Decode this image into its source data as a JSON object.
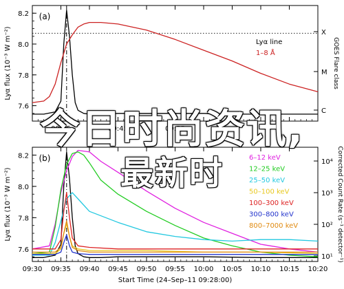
{
  "chart_data": [
    {
      "panel": "(a)",
      "type": "line",
      "ylabel": "Lyα flux (10⁻³ W m⁻²)",
      "ylim": [
        7.5,
        8.25
      ],
      "yticks": [
        "7.6",
        "7.8",
        "8.0",
        "8.2"
      ],
      "xlim": [
        0,
        50
      ],
      "xticks_minutes": [
        0,
        5,
        10,
        15,
        20,
        25,
        30,
        35,
        40,
        45,
        50
      ],
      "xticklabels": [
        "",
        "09:35",
        "",
        "09:45",
        "",
        "09:55",
        "",
        "",
        "",
        "",
        ""
      ],
      "right_axis_label": "GOES Flare class",
      "right_axis_ticks": [
        "X",
        "M",
        "C"
      ],
      "dashed_hline": 8.07,
      "flare_peak_minute": 6,
      "legend": [
        {
          "name": "Lyα line",
          "color": "#000000"
        },
        {
          "name": "1–8 Å",
          "color": "#cc2222"
        }
      ],
      "series": [
        {
          "name": "Lyα line",
          "color": "#000000",
          "x": [
            0,
            2,
            4,
            5,
            5.5,
            6,
            6.5,
            7,
            7.5,
            8,
            9,
            10,
            12,
            15,
            20,
            25,
            30,
            35,
            40,
            45,
            50
          ],
          "y": [
            7.545,
            7.545,
            7.56,
            7.63,
            8.0,
            8.22,
            8.05,
            7.8,
            7.62,
            7.57,
            7.55,
            7.545,
            7.545,
            7.55,
            7.55,
            7.55,
            7.55,
            7.545,
            7.545,
            7.545,
            7.545
          ]
        },
        {
          "name": "1–8 Å",
          "color": "#cc2222",
          "x": [
            0,
            2,
            3,
            4,
            5,
            6,
            7,
            8,
            9,
            10,
            12,
            15,
            20,
            25,
            30,
            35,
            40,
            45,
            50
          ],
          "y": [
            7.62,
            7.63,
            7.66,
            7.74,
            7.88,
            8.0,
            8.06,
            8.11,
            8.13,
            8.14,
            8.14,
            8.13,
            8.09,
            8.03,
            7.96,
            7.89,
            7.81,
            7.74,
            7.69
          ]
        }
      ]
    },
    {
      "panel": "(b)",
      "type": "line",
      "ylabel": "Lyα flux (10⁻³ W m⁻²)",
      "ylim": [
        7.52,
        8.25
      ],
      "yticks": [
        "7.6",
        "7.8",
        "8.0",
        "8.2"
      ],
      "xlim": [
        0,
        50
      ],
      "xticks_minutes": [
        0,
        5,
        10,
        15,
        20,
        25,
        30,
        35,
        40,
        45,
        50
      ],
      "xticklabels": [
        "09:30",
        "09:35",
        "09:40",
        "09:45",
        "09:50",
        "09:55",
        "10:00",
        "10:05",
        "10:10",
        "10:15",
        "10:20"
      ],
      "xlabel": "Start Time (24–Sep–11 09:28:00)",
      "right_axis_label": "Corrected Count Rate (s⁻¹ detector⁻¹)",
      "right_axis_ticks": [
        "10⁴",
        "10³",
        "10²",
        "10¹"
      ],
      "flare_peak_minute": 6,
      "legend": [
        {
          "name": "6–12 keV",
          "color": "#e020e0"
        },
        {
          "name": "12–25 keV",
          "color": "#22cc22"
        },
        {
          "name": "25–50 keV",
          "color": "#22c8e0"
        },
        {
          "name": "50–100 keV",
          "color": "#e8c820"
        },
        {
          "name": "100–300 keV",
          "color": "#dd2222"
        },
        {
          "name": "300–800 keV",
          "color": "#2233cc"
        },
        {
          "name": "800–7000 keV",
          "color": "#e08a10"
        }
      ],
      "series": [
        {
          "name": "Lyα line",
          "color": "#000000",
          "x": [
            0,
            2,
            4,
            5,
            5.5,
            6,
            6.5,
            7,
            7.5,
            8,
            9,
            10,
            12,
            15,
            20,
            30,
            40,
            50
          ],
          "y": [
            7.545,
            7.545,
            7.56,
            7.63,
            8.0,
            8.22,
            8.05,
            7.8,
            7.62,
            7.57,
            7.55,
            7.545,
            7.545,
            7.55,
            7.55,
            7.55,
            7.545,
            7.545
          ]
        },
        {
          "name": "6–12 keV",
          "color": "#e020e0",
          "x": [
            0,
            3,
            4,
            5,
            6,
            7,
            8,
            10,
            12,
            15,
            20,
            25,
            30,
            35,
            40,
            45,
            50
          ],
          "y": [
            7.6,
            7.62,
            7.76,
            7.96,
            8.1,
            8.19,
            8.23,
            8.22,
            8.16,
            8.09,
            7.97,
            7.86,
            7.77,
            7.7,
            7.63,
            7.6,
            7.58
          ]
        },
        {
          "name": "12–25 keV",
          "color": "#22cc22",
          "x": [
            0,
            3,
            4,
            5,
            6,
            7,
            8,
            9,
            10,
            12,
            15,
            20,
            25,
            30,
            35,
            40,
            45,
            50
          ],
          "y": [
            7.57,
            7.58,
            7.74,
            7.98,
            8.14,
            8.21,
            8.22,
            8.2,
            8.15,
            8.04,
            7.95,
            7.84,
            7.75,
            7.67,
            7.62,
            7.58,
            7.56,
            7.55
          ]
        },
        {
          "name": "25–50 keV",
          "color": "#22c8e0",
          "x": [
            0,
            3,
            4,
            5,
            6,
            7,
            8,
            10,
            15,
            20,
            25,
            30,
            35,
            40,
            45,
            50
          ],
          "y": [
            7.56,
            7.56,
            7.64,
            7.78,
            7.92,
            7.96,
            7.92,
            7.84,
            7.77,
            7.71,
            7.68,
            7.66,
            7.65,
            7.66,
            7.66,
            7.65
          ]
        },
        {
          "name": "50–100 keV",
          "color": "#e8c820",
          "x": [
            0,
            4,
            5,
            5.5,
            6,
            6.5,
            7,
            8,
            10,
            15,
            20,
            30,
            40,
            50
          ],
          "y": [
            7.57,
            7.57,
            7.6,
            7.7,
            7.76,
            7.68,
            7.62,
            7.6,
            7.59,
            7.59,
            7.59,
            7.58,
            7.58,
            7.57
          ]
        },
        {
          "name": "100–300 keV",
          "color": "#dd2222",
          "x": [
            0,
            4,
            5,
            5.5,
            6,
            6.5,
            7,
            8,
            10,
            15,
            20,
            30,
            40,
            50
          ],
          "y": [
            7.6,
            7.6,
            7.66,
            7.84,
            7.96,
            7.8,
            7.67,
            7.62,
            7.61,
            7.6,
            7.6,
            7.6,
            7.6,
            7.6
          ]
        },
        {
          "name": "300–800 keV",
          "color": "#2233cc",
          "x": [
            0,
            4,
            5,
            5.5,
            6,
            6.5,
            7,
            8,
            10,
            20,
            30,
            40,
            50
          ],
          "y": [
            7.565,
            7.565,
            7.58,
            7.64,
            7.69,
            7.62,
            7.58,
            7.57,
            7.565,
            7.565,
            7.565,
            7.565,
            7.565
          ]
        },
        {
          "name": "800–7000 keV",
          "color": "#e08a10",
          "x": [
            0,
            4,
            5,
            5.5,
            6,
            6.5,
            7,
            8,
            10,
            20,
            30,
            40,
            50
          ],
          "y": [
            7.58,
            7.58,
            7.61,
            7.7,
            7.78,
            7.68,
            7.61,
            7.59,
            7.58,
            7.58,
            7.58,
            7.58,
            7.58
          ]
        }
      ]
    }
  ],
  "overlay": {
    "line1": "今日时尚资讯,",
    "line2": "最新时"
  }
}
